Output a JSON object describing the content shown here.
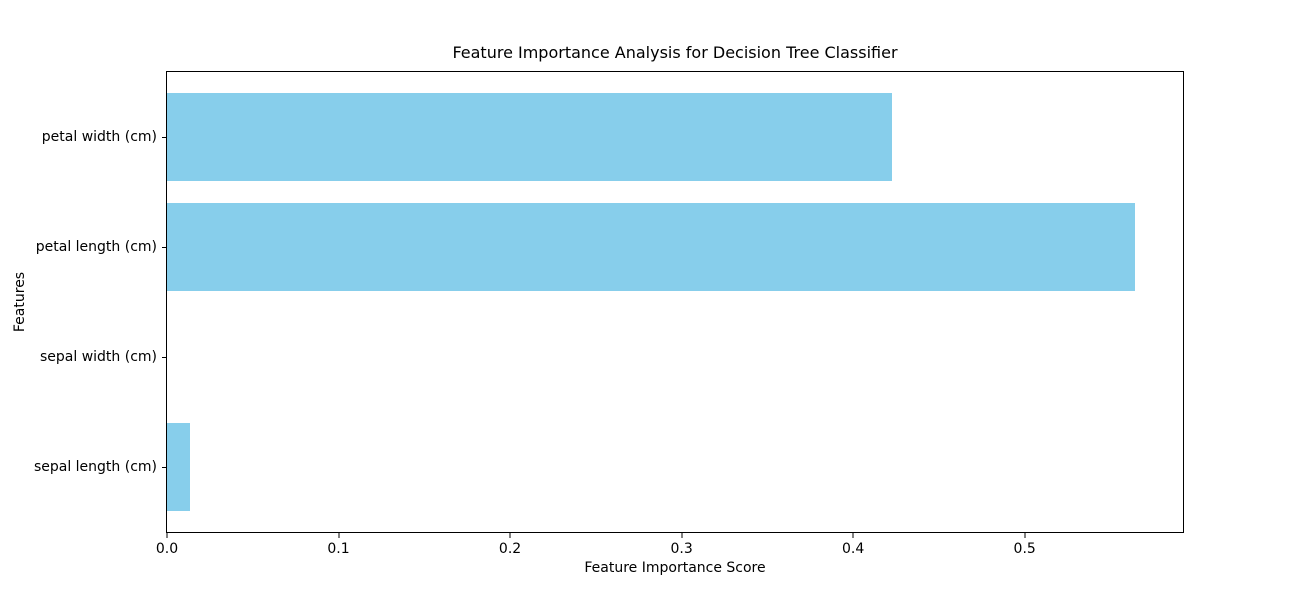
{
  "chart_data": {
    "type": "bar",
    "orientation": "horizontal",
    "title": "Feature Importance Analysis for Decision Tree Classifier",
    "xlabel": "Feature Importance Score",
    "ylabel": "Features",
    "order": "top-to-bottom",
    "categories": [
      "petal width (cm)",
      "petal length (cm)",
      "sepal width (cm)",
      "sepal length (cm)"
    ],
    "values": [
      0.4226,
      0.5641,
      0.0,
      0.0133
    ],
    "x_ticks": [
      0.0,
      0.1,
      0.2,
      0.3,
      0.4,
      0.5
    ],
    "x_tick_labels": [
      "0.0",
      "0.1",
      "0.2",
      "0.3",
      "0.4",
      "0.5"
    ],
    "xlim": [
      0,
      0.5923
    ],
    "bar_color": "#87CEEB",
    "text_color": "#000000",
    "background_color": "#ffffff",
    "grid": false,
    "legend": "none"
  }
}
